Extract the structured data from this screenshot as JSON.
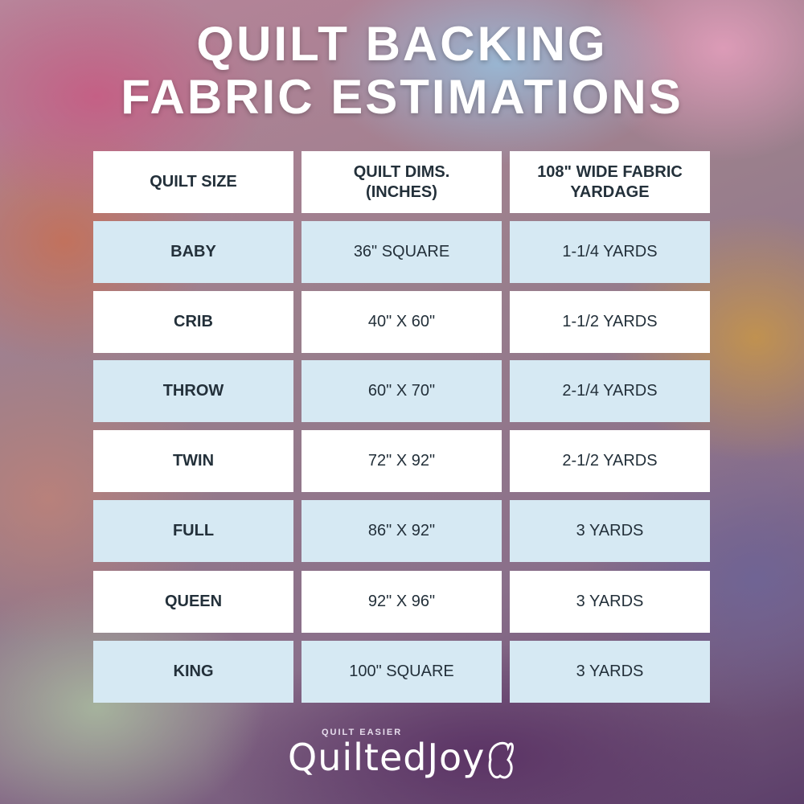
{
  "title_line1": "QUILT BACKING",
  "title_line2": "FABRIC ESTIMATIONS",
  "table": {
    "headers": [
      "QUILT SIZE",
      "QUILT DIMS.\n(INCHES)",
      "108\" WIDE FABRIC\nYARDAGE"
    ],
    "rows": [
      [
        "BABY",
        "36\" SQUARE",
        "1-1/4 YARDS"
      ],
      [
        "CRIB",
        "40\" X 60\"",
        "1-1/2 YARDS"
      ],
      [
        "THROW",
        "60\" X 70\"",
        "2-1/4 YARDS"
      ],
      [
        "TWIN",
        "72\" X 92\"",
        "2-1/2 YARDS"
      ],
      [
        "FULL",
        "86\" X 92\"",
        "3 YARDS"
      ],
      [
        "QUEEN",
        "92\" X 96\"",
        "3 YARDS"
      ],
      [
        "KING",
        "100\" SQUARE",
        "3 YARDS"
      ]
    ]
  },
  "logo": {
    "tagline": "QUILT EASIER",
    "name": "QuiltedJoy"
  },
  "colors": {
    "header_bg": "#ffffff",
    "row_light": "#d6e9f3",
    "row_white": "#ffffff",
    "text": "#23303a"
  }
}
